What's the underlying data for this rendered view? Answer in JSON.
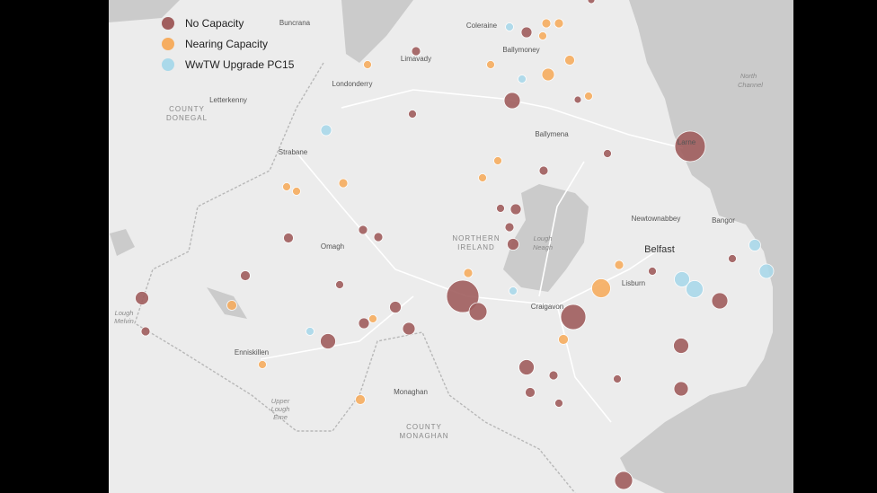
{
  "legend": {
    "items": [
      {
        "label": "No Capacity",
        "color": "#a05e5e"
      },
      {
        "label": "Nearing Capacity",
        "color": "#f6ad60"
      },
      {
        "label": "WwTW Upgrade PC15",
        "color": "#aad9ea"
      }
    ]
  },
  "places": [
    "Buncrana",
    "Coleraine",
    "Limavady",
    "Ballymoney",
    "Londonderry",
    "Letterkenny",
    "Ballymena",
    "Larne",
    "Strabane",
    "Newtownabbey",
    "Bangor",
    "Omagh",
    "Lisburn",
    "Craigavon",
    "Enniskillen",
    "Monaghan"
  ],
  "cities": [
    "Belfast"
  ],
  "regions": [
    "COUNTY",
    "DONEGAL",
    "NORTHERN",
    "IRELAND",
    "COUNTY",
    "MONAGHAN"
  ],
  "waters": [
    "North",
    "Channel",
    "Lough",
    "Neagh",
    "Lough",
    "Melvin",
    "Upper",
    "Lough",
    "Erne"
  ]
}
